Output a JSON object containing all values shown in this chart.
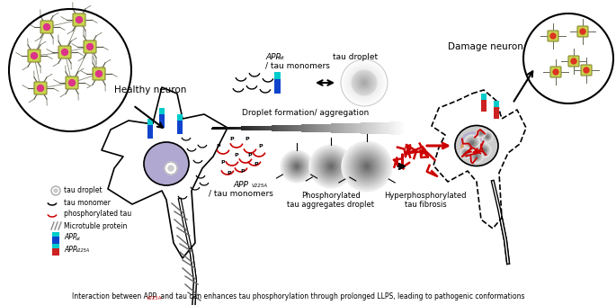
{
  "bg_color": "#ffffff",
  "healthy_neuron_label": "Healthy neuron",
  "damage_neuron_label": "Damage neuron",
  "app_wt_label": "APP",
  "app_wt_sub": "wt",
  "tau_monomers_label": "/ tau monomers",
  "tau_droplet_label": "tau droplet",
  "droplet_formation_label": "Droplet formation/ aggregation",
  "app_v225a_label": "APP",
  "app_v225a_sub": "V225A",
  "app_v225a_label2": "/ tau monomers",
  "phosphorylated_label": "Phosphorylated",
  "tau_aggregates_label": "tau aggregates droplet",
  "hyperphosphorylated_label": "Hyperphosphorylated",
  "tau_fibrosis_label": "tau fibrosis",
  "app_wt_legend_sub": "wt",
  "app_v225a_legend_sub": "V225A",
  "soma_color": "#b0a8d0",
  "caption_text": "Interaction between APP",
  "caption_sub": "V225A",
  "caption_rest": " and tau can enhances tau phosphorylation through prolonged LLPS, leading to pathogenic conformations"
}
